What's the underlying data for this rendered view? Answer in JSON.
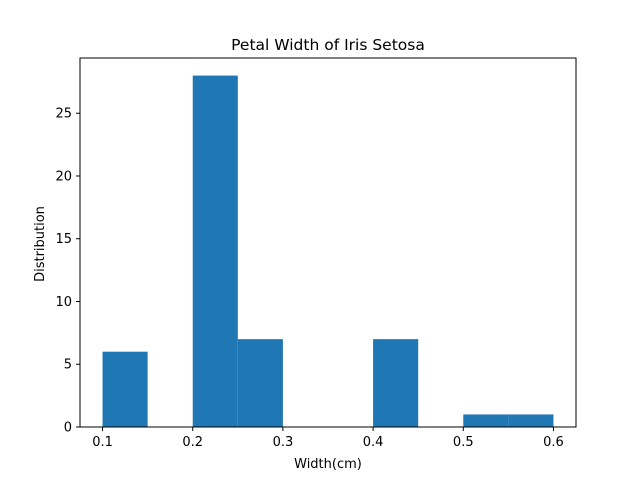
{
  "chart_data": {
    "type": "bar",
    "title": "Petal Width of Iris Setosa",
    "xlabel": "Width(cm)",
    "ylabel": "Distribution",
    "xlim": [
      0.075,
      0.625
    ],
    "ylim": [
      0,
      29.4
    ],
    "grid": false,
    "bar_color": "#1f77b4",
    "bins": [
      {
        "x0": 0.1,
        "x1": 0.15,
        "value": 6
      },
      {
        "x0": 0.15,
        "x1": 0.2,
        "value": 0
      },
      {
        "x0": 0.2,
        "x1": 0.25,
        "value": 28
      },
      {
        "x0": 0.25,
        "x1": 0.3,
        "value": 7
      },
      {
        "x0": 0.3,
        "x1": 0.35,
        "value": 0
      },
      {
        "x0": 0.35,
        "x1": 0.4,
        "value": 0
      },
      {
        "x0": 0.4,
        "x1": 0.45,
        "value": 7
      },
      {
        "x0": 0.45,
        "x1": 0.5,
        "value": 0
      },
      {
        "x0": 0.5,
        "x1": 0.55,
        "value": 1
      },
      {
        "x0": 0.55,
        "x1": 0.6,
        "value": 1
      }
    ],
    "xticks": [
      {
        "value": 0.1,
        "label": "0.1"
      },
      {
        "value": 0.2,
        "label": "0.2"
      },
      {
        "value": 0.3,
        "label": "0.3"
      },
      {
        "value": 0.4,
        "label": "0.4"
      },
      {
        "value": 0.5,
        "label": "0.5"
      },
      {
        "value": 0.6,
        "label": "0.6"
      }
    ],
    "yticks": [
      {
        "value": 0,
        "label": "0"
      },
      {
        "value": 5,
        "label": "5"
      },
      {
        "value": 10,
        "label": "10"
      },
      {
        "value": 15,
        "label": "15"
      },
      {
        "value": 20,
        "label": "20"
      },
      {
        "value": 25,
        "label": "25"
      }
    ]
  }
}
